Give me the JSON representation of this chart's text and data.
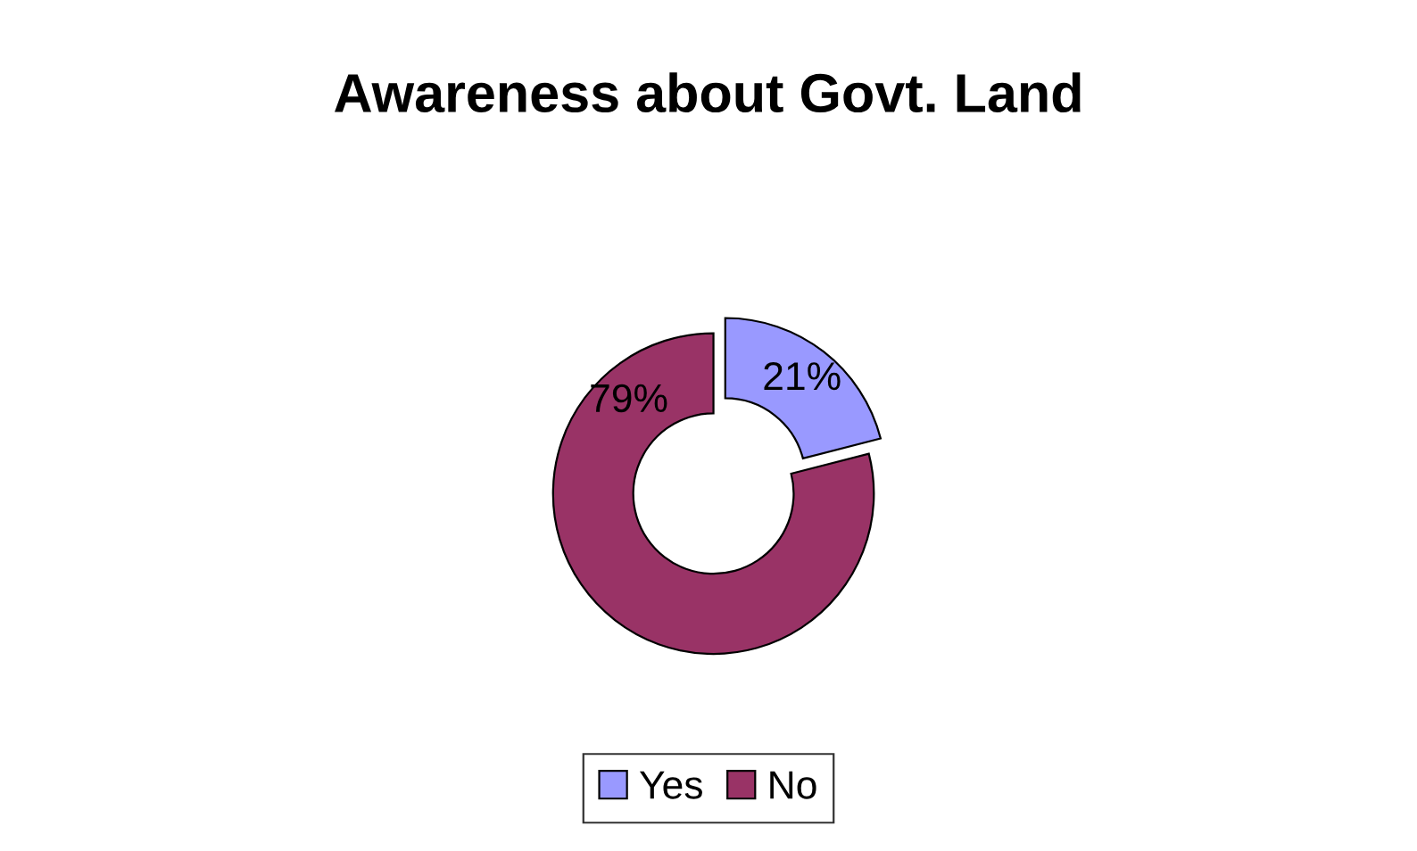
{
  "chart_data": {
    "type": "donut",
    "title": "Awareness about Govt. Land",
    "categories": [
      "Yes",
      "No"
    ],
    "values": [
      21,
      79
    ],
    "colors": [
      "#9999ff",
      "#993366"
    ],
    "value_labels": [
      "21%",
      "79%"
    ],
    "legend": "bottom"
  }
}
